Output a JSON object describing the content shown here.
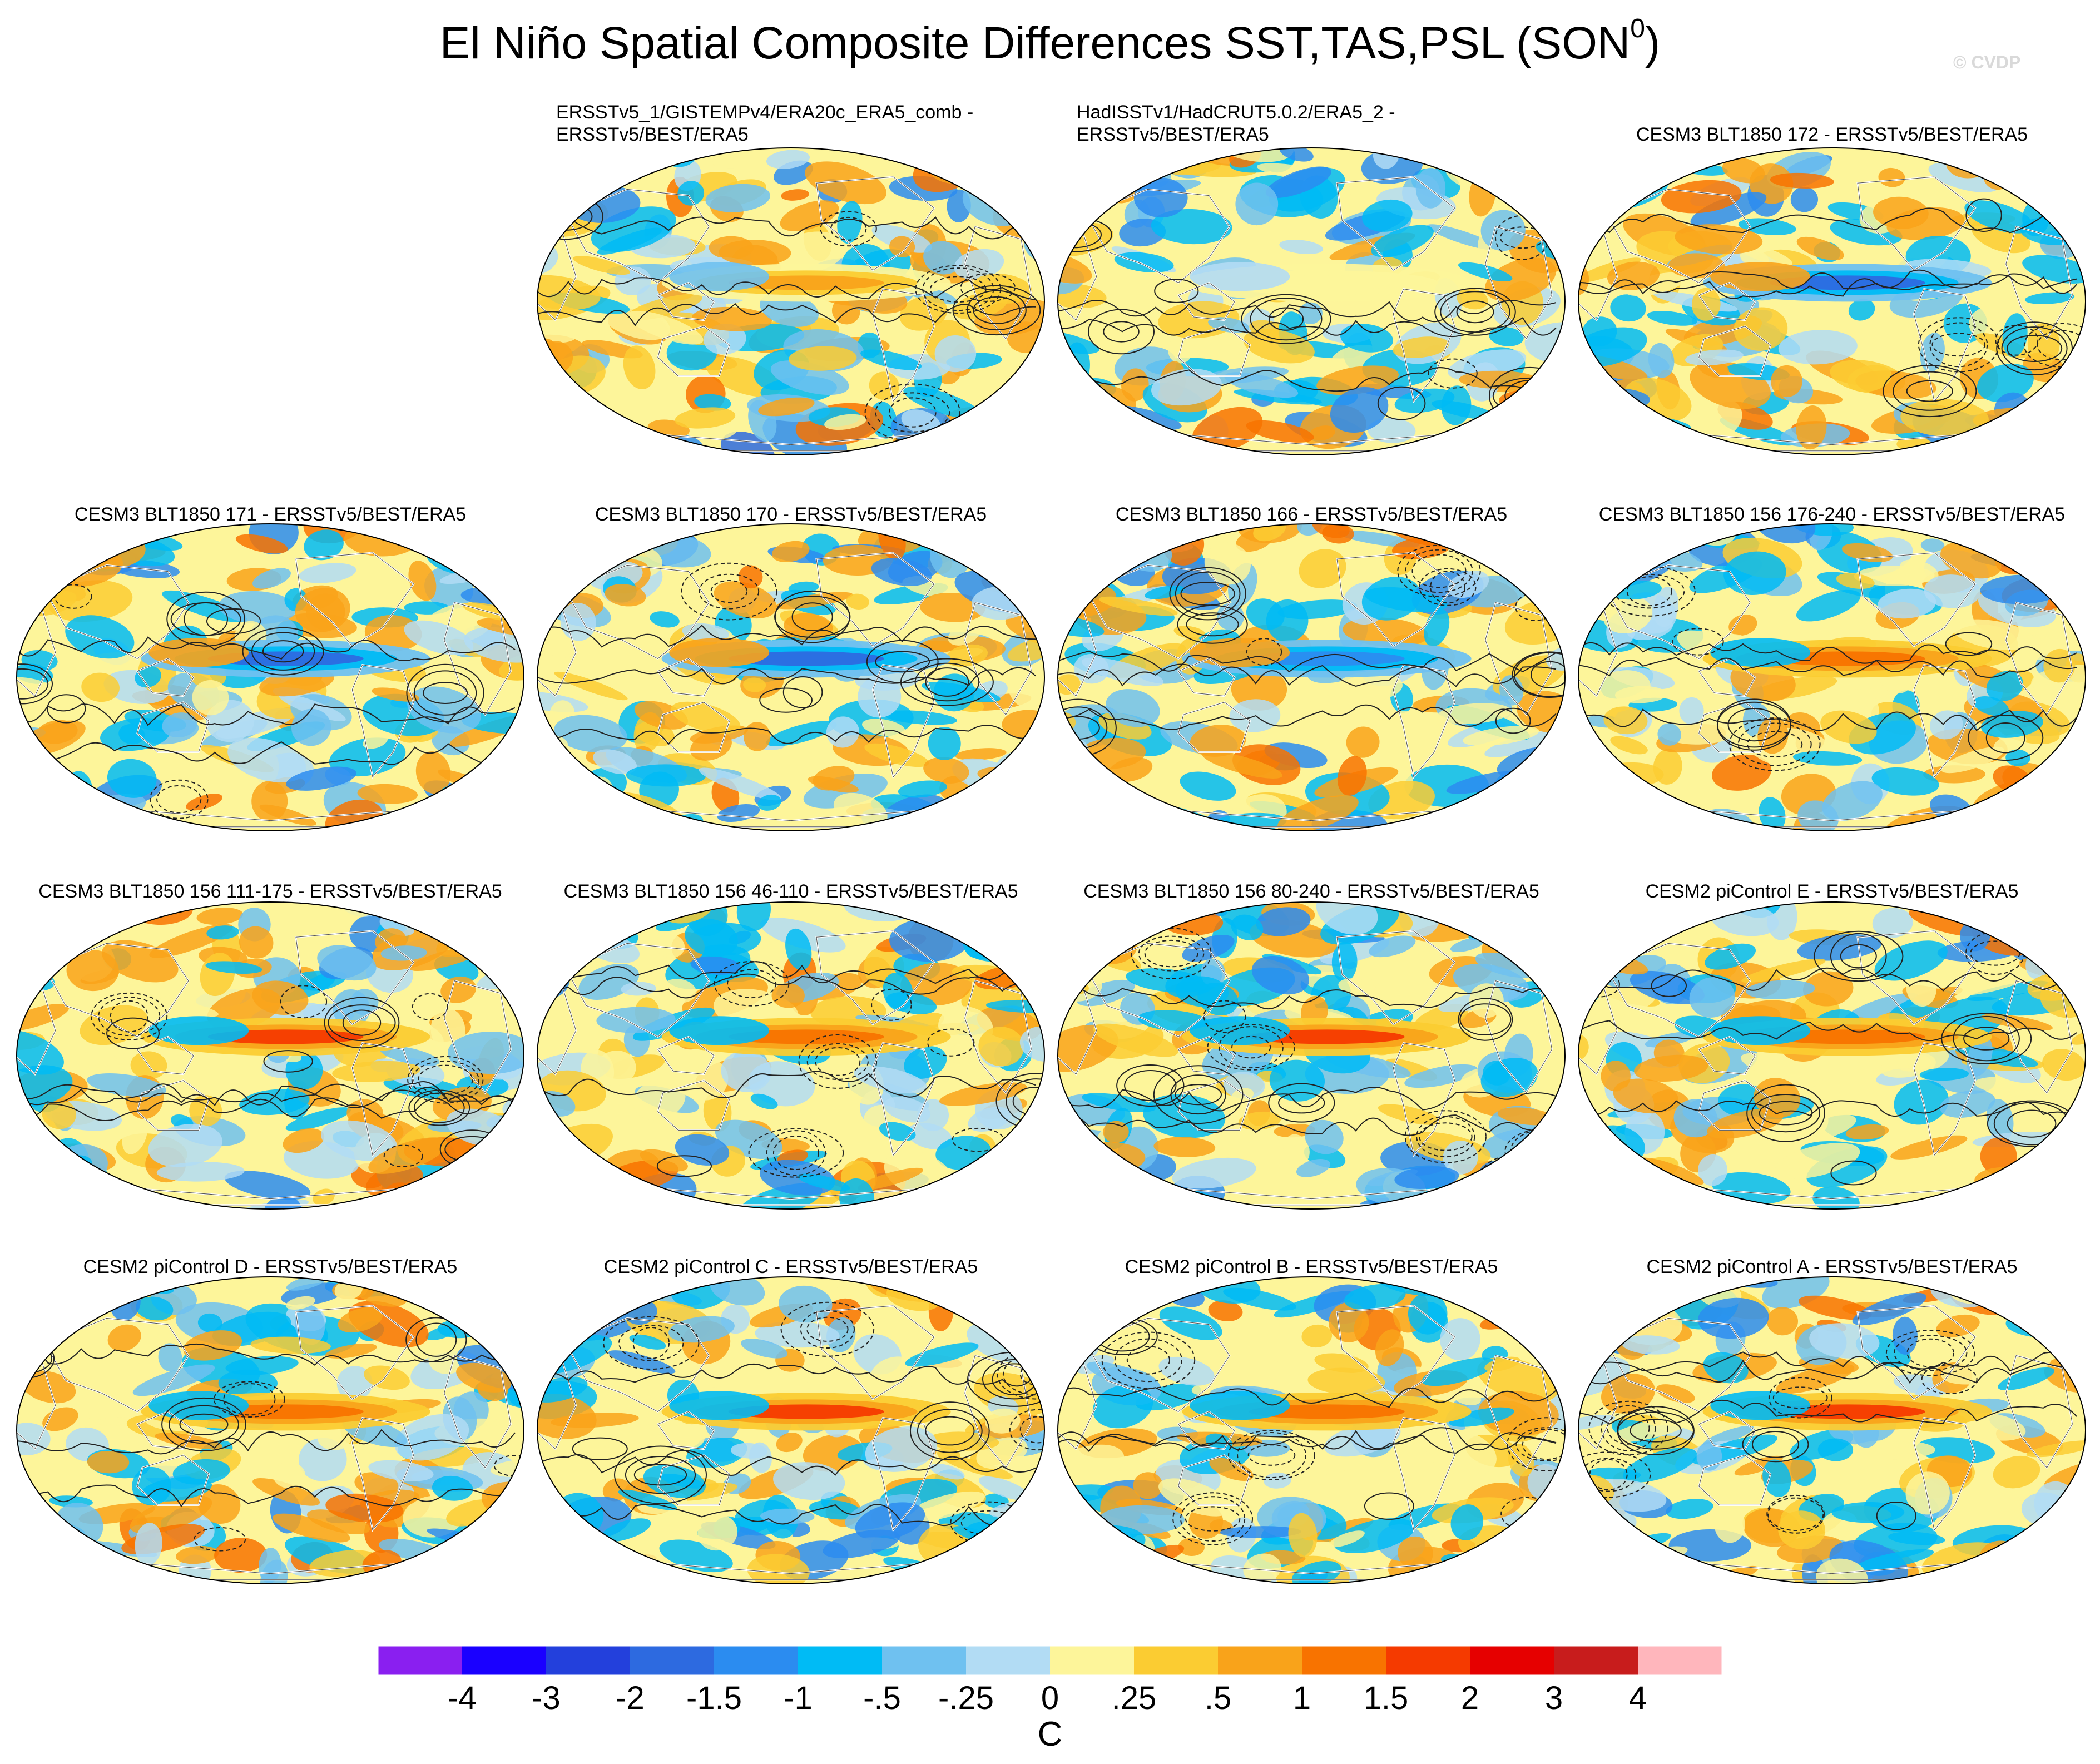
{
  "title": "El Niño Spatial Composite Differences SST,TAS,PSL (SON",
  "title_superscript": "0",
  "title_close": ")",
  "credit": "© CVDP",
  "panels": [
    {
      "title_lines": [
        "ERSSTv5_1/GISTEMPv4/ERA20c_ERA5_comb -",
        "ERSSTv5/BEST/ERA5"
      ],
      "seed": 11,
      "enso": 0.3
    },
    {
      "title_lines": [
        "HadISSTv1/HadCRUT5.0.2/ERA5_2 -",
        "ERSSTv5/BEST/ERA5"
      ],
      "seed": 23,
      "enso": 0.1
    },
    {
      "title_lines": [
        "CESM3 BLT1850 172 - ERSSTv5/BEST/ERA5"
      ],
      "seed": 37,
      "enso": -0.9
    },
    {
      "title_lines": [
        "CESM3 BLT1850 171 - ERSSTv5/BEST/ERA5"
      ],
      "seed": 41,
      "enso": -1.0
    },
    {
      "title_lines": [
        "CESM3 BLT1850 170 - ERSSTv5/BEST/ERA5"
      ],
      "seed": 53,
      "enso": -0.9
    },
    {
      "title_lines": [
        "CESM3 BLT1850 166 - ERSSTv5/BEST/ERA5"
      ],
      "seed": 67,
      "enso": -0.6
    },
    {
      "title_lines": [
        "CESM3 BLT1850 156 176-240 - ERSSTv5/BEST/ERA5"
      ],
      "seed": 71,
      "enso": 0.8
    },
    {
      "title_lines": [
        "CESM3 BLT1850 156 111-175 - ERSSTv5/BEST/ERA5"
      ],
      "seed": 83,
      "enso": 0.9
    },
    {
      "title_lines": [
        "CESM3 BLT1850 156 46-110 - ERSSTv5/BEST/ERA5"
      ],
      "seed": 97,
      "enso": 0.8
    },
    {
      "title_lines": [
        "CESM3 BLT1850 156 80-240 - ERSSTv5/BEST/ERA5"
      ],
      "seed": 101,
      "enso": 0.9
    },
    {
      "title_lines": [
        "CESM2 piControl E - ERSSTv5/BEST/ERA5"
      ],
      "seed": 113,
      "enso": 0.6
    },
    {
      "title_lines": [
        "CESM2 piControl D - ERSSTv5/BEST/ERA5"
      ],
      "seed": 127,
      "enso": 0.7
    },
    {
      "title_lines": [
        "CESM2 piControl C - ERSSTv5/BEST/ERA5"
      ],
      "seed": 131,
      "enso": 1.0
    },
    {
      "title_lines": [
        "CESM2 piControl B - ERSSTv5/BEST/ERA5"
      ],
      "seed": 149,
      "enso": 0.7
    },
    {
      "title_lines": [
        "CESM2 piControl A - ERSSTv5/BEST/ERA5"
      ],
      "seed": 157,
      "enso": 0.9
    }
  ],
  "chart_data": {
    "type": "heatmap",
    "title": "El Niño Spatial Composite Differences SST,TAS,PSL (SON0)",
    "projection": "Robinson, Pacific-centered",
    "shading": "SST/TAS composite difference",
    "contours": "PSL composite difference (solid positive, dashed negative)",
    "units": "C",
    "colorbar": {
      "levels": [
        "-4",
        "-3",
        "-2",
        "-1.5",
        "-1",
        "-.5",
        "-.25",
        "0",
        ".25",
        ".5",
        "1",
        "1.5",
        "2",
        "3",
        "4"
      ],
      "colors": [
        "#8a1ff0",
        "#1a00ff",
        "#2340dc",
        "#2d6ae0",
        "#2b8cf0",
        "#00bbf5",
        "#6fc1f0",
        "#b2dcf4",
        "#fdf59a",
        "#fbcc32",
        "#f9a31a",
        "#f87300",
        "#f53a00",
        "#e60000",
        "#c81c1c",
        "#ffb6bc"
      ]
    }
  }
}
